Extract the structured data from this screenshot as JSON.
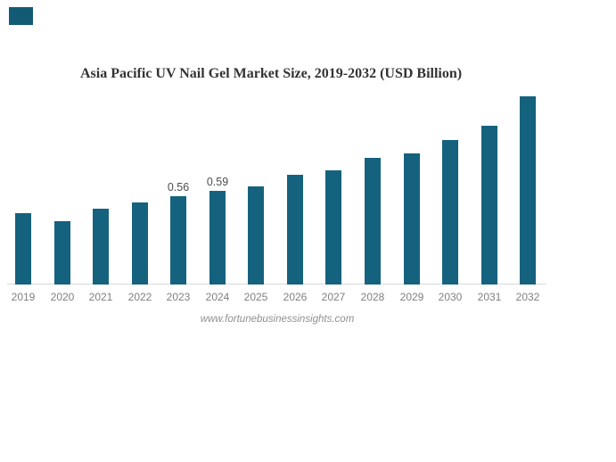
{
  "page": {
    "background": "#ffffff"
  },
  "logo": {
    "color": "#135a74"
  },
  "chart_data": {
    "type": "bar",
    "title": "Asia Pacific UV Nail Gel Market Size, 2019-2032 (USD Billion)",
    "categories": [
      "2019",
      "2020",
      "2021",
      "2022",
      "2023",
      "2024",
      "2025",
      "2026",
      "2027",
      "2028",
      "2029",
      "2030",
      "2031",
      "2032"
    ],
    "values": [
      0.45,
      0.4,
      0.48,
      0.52,
      0.56,
      0.59,
      0.62,
      0.69,
      0.72,
      0.8,
      0.83,
      0.91,
      1.0,
      1.19
    ],
    "data_labels": {
      "2023": "0.56",
      "2024": "0.59"
    },
    "unit": "USD Billion",
    "xlabel": "",
    "ylabel": "",
    "ylim": [
      0,
      1.25
    ],
    "grid": false,
    "legend": false,
    "bar_color": "#14627e",
    "axis_line_color": "#d9d9d9",
    "tick_label_color": "#808080",
    "data_label_color": "#4d4d4d",
    "source": "www.fortunebusinessinsights.com"
  }
}
